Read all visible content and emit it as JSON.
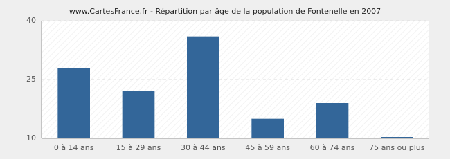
{
  "chart_data": {
    "type": "bar",
    "title": "www.CartesFrance.fr - Répartition par âge de la population de Fontenelle en 2007",
    "categories": [
      "0 à 14 ans",
      "15 à 29 ans",
      "30 à 44 ans",
      "45 à 59 ans",
      "60 à 74 ans",
      "75 ans ou plus"
    ],
    "values": [
      28,
      22,
      36,
      15,
      19,
      10
    ],
    "color": "#336699",
    "ylim": [
      10,
      40
    ],
    "yticks": [
      10,
      25,
      40
    ],
    "grid": true
  }
}
